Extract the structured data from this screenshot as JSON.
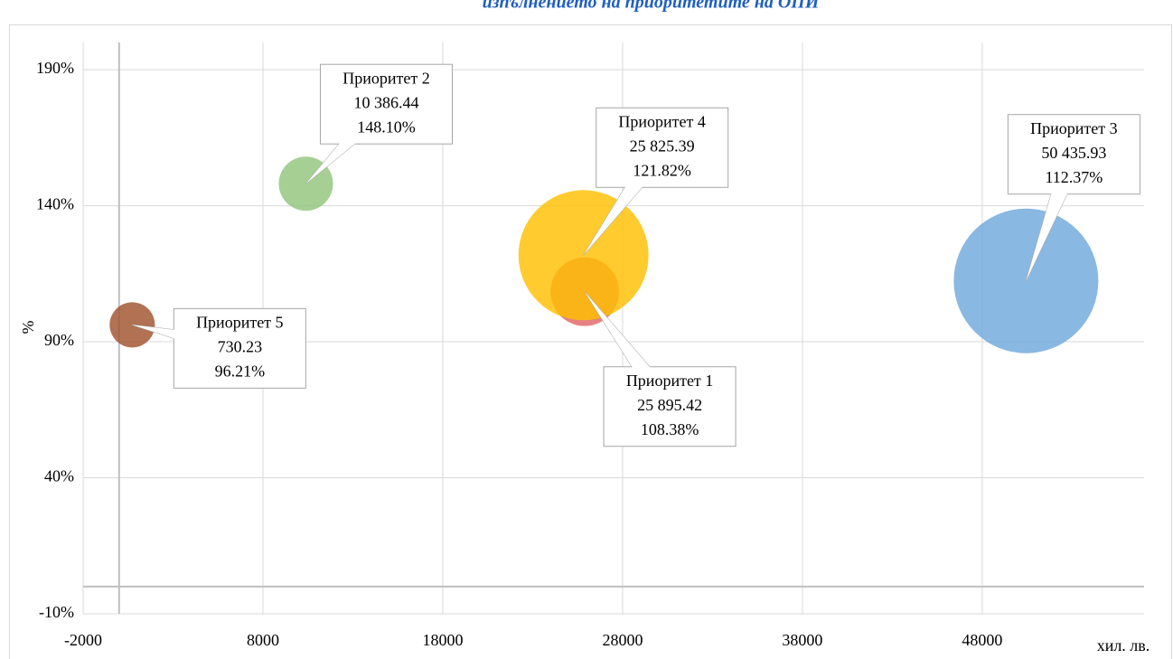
{
  "chart_data": {
    "type": "bubble",
    "title": "изпълнението на приоритетите на ОПИ",
    "x_label": "хил. лв.",
    "y_label": "%",
    "xlim": [
      -2000,
      57000
    ],
    "xticks": [
      -2000,
      8000,
      18000,
      28000,
      38000,
      48000
    ],
    "ylim": [
      -10,
      200
    ],
    "yticks": [
      {
        "value": -10,
        "label": "-10%"
      },
      {
        "value": 40,
        "label": "40%"
      },
      {
        "value": 90,
        "label": "90%"
      },
      {
        "value": 140,
        "label": "140%"
      },
      {
        "value": 190,
        "label": "190%"
      }
    ],
    "grid": true,
    "series": [
      {
        "name": "Приоритет 1",
        "color": "#e06666",
        "x": [
          25895.42
        ],
        "x_labels": [
          "25 895.42"
        ],
        "values": [
          108.38
        ],
        "value_labels": [
          "108.38%"
        ],
        "sizes": [
          14.4
        ]
      },
      {
        "name": "Приоритет 2",
        "color": "#93c47d",
        "x": [
          10386.44
        ],
        "x_labels": [
          "10 386.44"
        ],
        "values": [
          148.1
        ],
        "value_labels": [
          "148.10%"
        ],
        "sizes": [
          9
        ]
      },
      {
        "name": "Приоритет 3",
        "color": "#6fa8dc",
        "x": [
          50435.93
        ],
        "x_labels": [
          "50 435.93"
        ],
        "values": [
          112.37
        ],
        "value_labels": [
          "112.37%"
        ],
        "sizes": [
          64
        ]
      },
      {
        "name": "Приоритет 4",
        "color": "#ffc000",
        "x": [
          25825.39
        ],
        "x_labels": [
          "25 825.39"
        ],
        "values": [
          121.82
        ],
        "value_labels": [
          "121.82%"
        ],
        "sizes": [
          51.8
        ]
      },
      {
        "name": "Приоритет 5",
        "color": "#a0522d",
        "x": [
          730.23
        ],
        "x_labels": [
          "730.23"
        ],
        "values": [
          96.21
        ],
        "value_labels": [
          "96.21%"
        ],
        "sizes": [
          6.25
        ]
      }
    ]
  }
}
